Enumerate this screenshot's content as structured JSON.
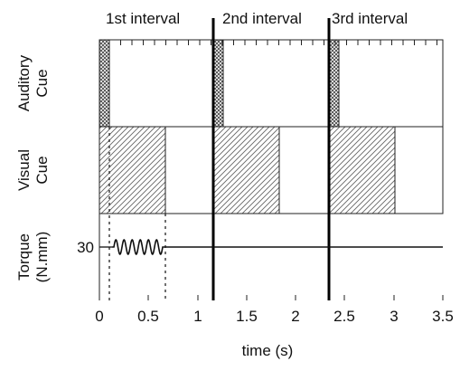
{
  "intervals": [
    {
      "label": "1st interval"
    },
    {
      "label": "2nd interval"
    },
    {
      "label": "3rd interval"
    }
  ],
  "row_labels": {
    "auditory": [
      "Auditory",
      "Cue"
    ],
    "visual": [
      "Visual",
      "Cue"
    ],
    "torque": [
      "Torque",
      "(N.mm)"
    ]
  },
  "torque_level_label": "30",
  "x_ticks": [
    "0",
    "0.5",
    "1",
    "1.5",
    "2",
    "2.5",
    "3",
    "3.5"
  ],
  "x_axis_title": "time (s)"
}
